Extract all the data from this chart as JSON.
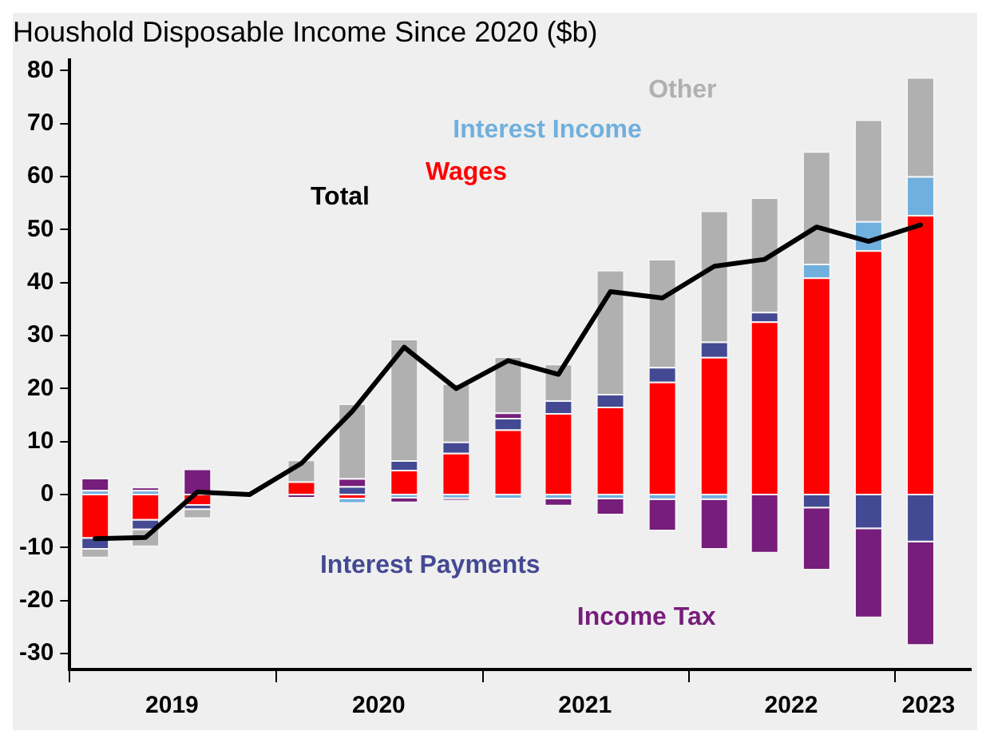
{
  "chart_data": {
    "type": "bar",
    "title": "Houshold Disposable Income Since 2020 ($b)",
    "stacked": true,
    "grid": false,
    "legend": false,
    "marker": "none",
    "x": [
      "2019-02-15",
      "2019-05-15",
      "2019-08-15",
      "2019-11-15",
      "2020-02-15",
      "2020-05-15",
      "2020-08-15",
      "2020-11-15",
      "2021-02-15",
      "2021-05-15",
      "2021-08-15",
      "2021-11-15",
      "2022-02-15",
      "2022-05-15",
      "2022-08-15",
      "2022-11-15",
      "2023-02-15"
    ],
    "xlim": [
      "2019-01-01",
      "2023-05-15"
    ],
    "xticks": [
      {
        "value": "2019-01-01",
        "label": null
      },
      {
        "value": "2019-07-01",
        "label": "2019"
      },
      {
        "value": "2020-01-01",
        "label": null
      },
      {
        "value": "2020-07-01",
        "label": "2020"
      },
      {
        "value": "2021-01-01",
        "label": null
      },
      {
        "value": "2021-07-01",
        "label": "2021"
      },
      {
        "value": "2022-01-01",
        "label": null
      },
      {
        "value": "2022-07-01",
        "label": "2022"
      },
      {
        "value": "2023-01-01",
        "label": null
      },
      {
        "value": "2023-03-01",
        "label": "2023"
      }
    ],
    "ylim": [
      -33,
      82
    ],
    "yticks": [
      -30,
      -20,
      -10,
      0,
      10,
      20,
      30,
      40,
      50,
      60,
      70,
      80
    ],
    "series": [
      {
        "name": "Wages",
        "color": "#ff0000",
        "values": [
          -8.3,
          -4.9,
          -2.1,
          0,
          2.5,
          -0.9,
          4.7,
          7.9,
          12.3,
          15.4,
          16.6,
          21.3,
          26.0,
          32.7,
          41.0,
          46.1,
          52.8
        ]
      },
      {
        "name": "Interest Income",
        "color": "#6fb0de",
        "values": [
          0.9,
          0.9,
          null,
          0,
          null,
          -0.8,
          -0.7,
          -0.8,
          -0.9,
          -0.9,
          -0.9,
          -1.0,
          -1.0,
          null,
          2.6,
          5.5,
          7.3
        ]
      },
      {
        "name": "Interest Payments",
        "color": "#444993",
        "values": [
          -2.1,
          -1.8,
          -0.8,
          0,
          null,
          1.6,
          1.8,
          2.1,
          2.2,
          2.4,
          2.4,
          2.8,
          2.9,
          1.8,
          -2.6,
          -6.5,
          -9.0
        ]
      },
      {
        "name": "Income Tax",
        "color": "#771d7b",
        "values": [
          2.3,
          0.6,
          4.9,
          0,
          -0.7,
          1.5,
          -0.9,
          -0.3,
          1.0,
          -1.3,
          -3.0,
          -5.9,
          -9.4,
          -11.1,
          -11.7,
          -16.8,
          -19.5
        ]
      },
      {
        "name": "Other",
        "color": "#b0b0b0",
        "values": [
          -1.6,
          -3.2,
          -1.7,
          0,
          4.1,
          14.1,
          22.9,
          11.0,
          10.6,
          6.9,
          23.4,
          20.4,
          24.7,
          21.6,
          21.2,
          19.2,
          18.7
        ]
      },
      {
        "name": "Total",
        "type": "line",
        "color": "#000000",
        "values": [
          -8.3,
          -8.1,
          0.5,
          0,
          5.9,
          15.7,
          27.8,
          20.0,
          25.3,
          22.7,
          38.3,
          37.1,
          43.1,
          44.4,
          50.5,
          47.8,
          50.9
        ]
      }
    ]
  }
}
